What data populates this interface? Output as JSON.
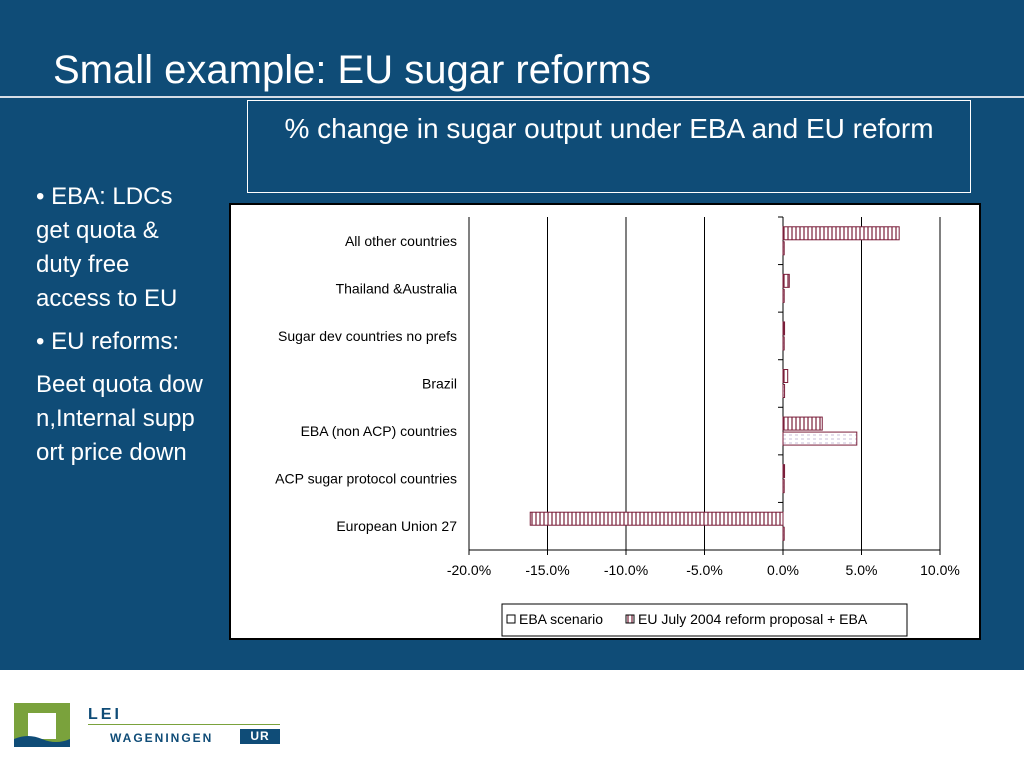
{
  "slide": {
    "title": "Small example: EU sugar reforms",
    "chart_heading": "% change in sugar output under EBA and EU reform",
    "bullets": [
      "• EBA: LDCs get quota & duty free access to EU",
      "• EU reforms:",
      "Beet quota down,Internal support price down"
    ],
    "colors": {
      "background": "#0f4c77",
      "text": "#ffffff",
      "bar_outline": "#7a1e3a",
      "eba_fill": "#ffffff",
      "eu_hatch": "#7a1e3a"
    }
  },
  "logo": {
    "lei": "LEI",
    "wageningen": "WAGENINGEN",
    "ur": "UR"
  },
  "chart_data": {
    "type": "bar",
    "orientation": "horizontal",
    "categories": [
      "All other countries",
      "Thailand &Australia",
      "Sugar dev countries no prefs",
      "Brazil",
      "EBA (non ACP) countries",
      "ACP sugar protocol countries",
      "European Union 27"
    ],
    "series": [
      {
        "name": "EBA scenario",
        "values": [
          0.0,
          0.0,
          0.0,
          0.1,
          4.7,
          0.0,
          0.0
        ]
      },
      {
        "name": "EU July 2004 reform proposal + EBA",
        "values": [
          7.4,
          0.4,
          0.1,
          0.3,
          2.5,
          0.1,
          -16.1
        ]
      }
    ],
    "xlim": [
      -20,
      10
    ],
    "x_ticks": [
      "-20.0%",
      "-15.0%",
      "-10.0%",
      "-5.0%",
      "0.0%",
      "5.0%",
      "10.0%"
    ],
    "tick_values": [
      -20,
      -15,
      -10,
      -5,
      0,
      5,
      10
    ],
    "grid": "vertical",
    "legend_position": "bottom"
  }
}
